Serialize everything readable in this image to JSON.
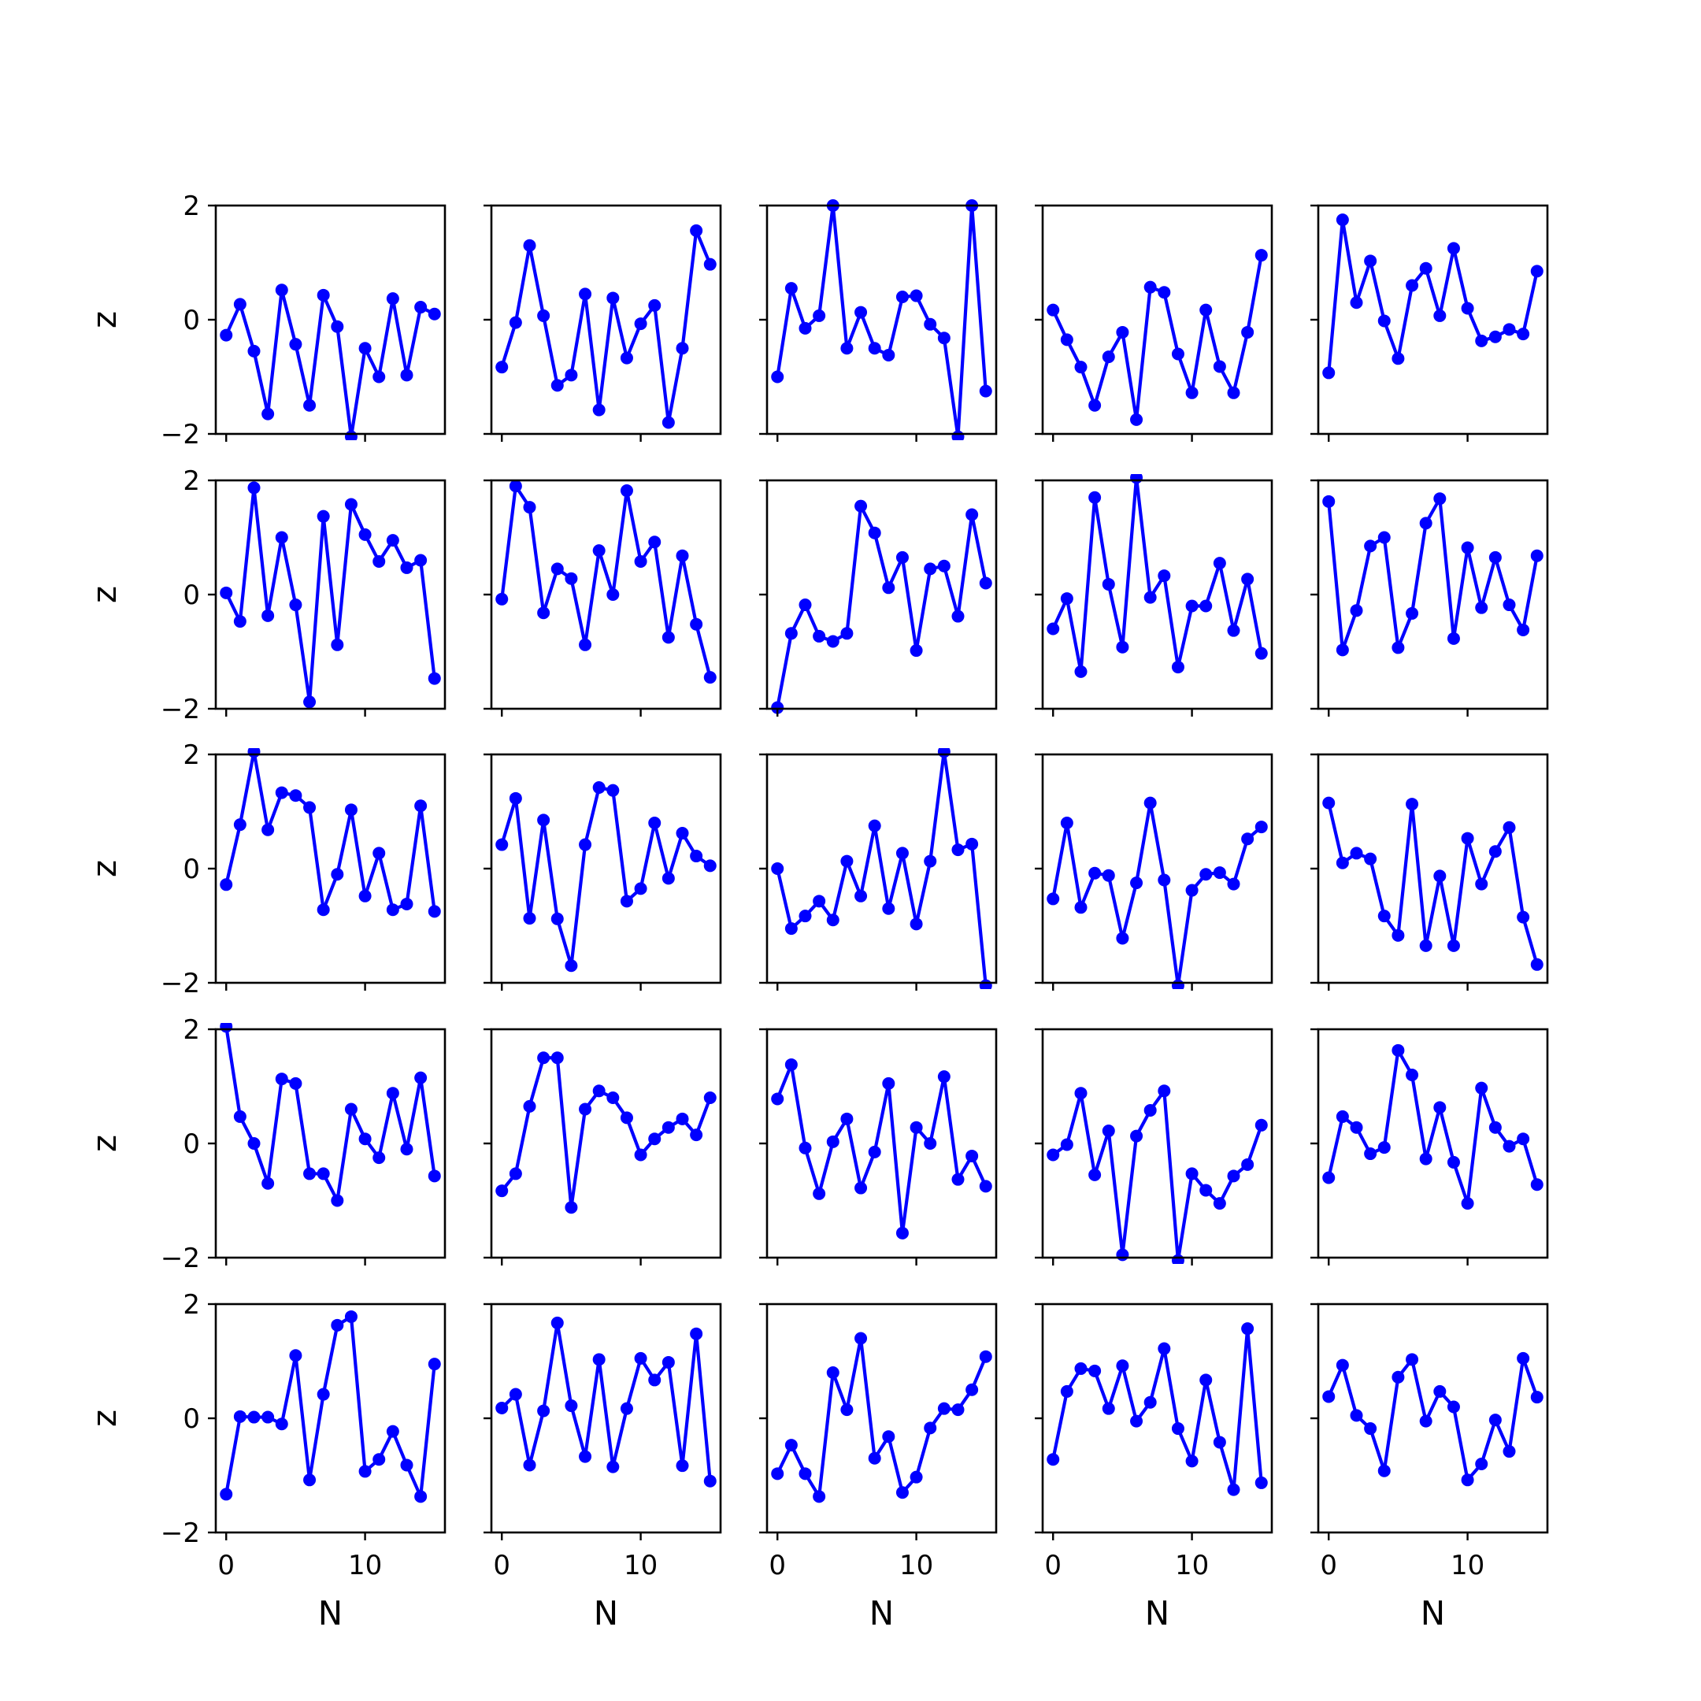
{
  "chart_data": {
    "type": "line",
    "layout": {
      "rows": 5,
      "cols": 5
    },
    "xlabel": "N",
    "ylabel": "z",
    "xlim": [
      -0.75,
      15.75
    ],
    "ylim": [
      -2,
      2
    ],
    "xticks": [
      0,
      10
    ],
    "yticks": [
      -2,
      0,
      2
    ],
    "x": [
      0,
      1,
      2,
      3,
      4,
      5,
      6,
      7,
      8,
      9,
      10,
      11,
      12,
      13,
      14,
      15
    ],
    "color": "#0000ff",
    "marker": "circle",
    "panels": [
      [
        -0.27,
        0.27,
        -0.55,
        -1.65,
        0.52,
        -0.43,
        -1.5,
        0.43,
        -0.12,
        -2.05,
        -0.5,
        -1.0,
        0.37,
        -0.97,
        0.22,
        0.1
      ],
      [
        -0.83,
        -0.05,
        1.3,
        0.07,
        -1.15,
        -0.97,
        0.45,
        -1.58,
        0.38,
        -0.67,
        -0.07,
        0.25,
        -1.8,
        -0.5,
        1.56,
        0.97
      ],
      [
        -1.0,
        0.55,
        -0.15,
        0.07,
        2.0,
        -0.5,
        0.13,
        -0.5,
        -0.62,
        0.4,
        0.42,
        -0.08,
        -0.32,
        -2.05,
        2.0,
        -1.25
      ],
      [
        0.17,
        -0.35,
        -0.83,
        -1.5,
        -0.65,
        -0.22,
        -1.75,
        0.57,
        0.48,
        -0.6,
        -1.28,
        0.17,
        -0.82,
        -1.28,
        -0.22,
        1.13
      ],
      [
        -0.93,
        1.75,
        0.3,
        1.03,
        -0.02,
        -0.68,
        0.6,
        0.9,
        0.07,
        1.25,
        0.2,
        -0.37,
        -0.3,
        -0.17,
        -0.25,
        0.85
      ],
      [
        0.03,
        -0.47,
        1.87,
        -0.37,
        1.0,
        -0.18,
        -1.88,
        1.37,
        -0.88,
        1.58,
        1.05,
        0.58,
        0.95,
        0.47,
        0.6,
        -1.47
      ],
      [
        -0.08,
        1.9,
        1.53,
        -0.32,
        0.45,
        0.28,
        -0.88,
        0.77,
        0.0,
        1.82,
        0.58,
        0.92,
        -0.75,
        0.68,
        -0.52,
        -1.45
      ],
      [
        -1.98,
        -0.68,
        -0.18,
        -0.73,
        -0.82,
        -0.68,
        1.55,
        1.08,
        0.12,
        0.65,
        -0.98,
        0.45,
        0.5,
        -0.38,
        1.4,
        0.2
      ],
      [
        -0.6,
        -0.07,
        -1.35,
        1.7,
        0.18,
        -0.92,
        2.05,
        -0.05,
        0.33,
        -1.27,
        -0.2,
        -0.2,
        0.55,
        -0.63,
        0.27,
        -1.03
      ],
      [
        1.63,
        -0.97,
        -0.28,
        0.85,
        1.0,
        -0.93,
        -0.33,
        1.25,
        1.68,
        -0.77,
        0.82,
        -0.23,
        0.65,
        -0.18,
        -0.62,
        0.68
      ],
      [
        -0.28,
        0.77,
        2.05,
        0.68,
        1.33,
        1.28,
        1.07,
        -0.72,
        -0.1,
        1.03,
        -0.48,
        0.27,
        -0.72,
        -0.62,
        1.1,
        -0.75
      ],
      [
        0.42,
        1.23,
        -0.87,
        0.85,
        -0.88,
        -1.7,
        0.42,
        1.42,
        1.37,
        -0.57,
        -0.35,
        0.8,
        -0.17,
        0.62,
        0.22,
        0.05
      ],
      [
        0.0,
        -1.05,
        -0.83,
        -0.57,
        -0.9,
        0.13,
        -0.48,
        0.75,
        -0.7,
        0.27,
        -0.97,
        0.13,
        2.05,
        0.33,
        0.43,
        -2.05
      ],
      [
        -0.53,
        0.8,
        -0.68,
        -0.08,
        -0.12,
        -1.22,
        -0.25,
        1.15,
        -0.2,
        -2.05,
        -0.38,
        -0.1,
        -0.07,
        -0.27,
        0.52,
        0.73
      ],
      [
        1.15,
        0.1,
        0.27,
        0.17,
        -0.83,
        -1.17,
        1.13,
        -1.35,
        -0.13,
        -1.35,
        0.53,
        -0.27,
        0.3,
        0.72,
        -0.85,
        -1.68
      ],
      [
        2.05,
        0.47,
        0.0,
        -0.7,
        1.13,
        1.05,
        -0.53,
        -0.53,
        -1.0,
        0.6,
        0.08,
        -0.25,
        0.88,
        -0.1,
        1.15,
        -0.57
      ],
      [
        -0.83,
        -0.53,
        0.65,
        1.5,
        1.5,
        -1.12,
        0.6,
        0.92,
        0.8,
        0.45,
        -0.2,
        0.08,
        0.28,
        0.43,
        0.15,
        0.8
      ],
      [
        0.78,
        1.38,
        -0.08,
        -0.88,
        0.03,
        0.43,
        -0.78,
        -0.15,
        1.05,
        -1.57,
        0.28,
        0.0,
        1.17,
        -0.63,
        -0.22,
        -0.75
      ],
      [
        -0.2,
        -0.02,
        0.88,
        -0.55,
        0.22,
        -1.95,
        0.13,
        0.58,
        0.92,
        -2.05,
        -0.53,
        -0.82,
        -1.05,
        -0.57,
        -0.37,
        0.32
      ],
      [
        -0.6,
        0.47,
        0.28,
        -0.18,
        -0.07,
        1.63,
        1.2,
        -0.27,
        0.63,
        -0.33,
        -1.05,
        0.97,
        0.28,
        -0.05,
        0.08,
        -0.72
      ],
      [
        -1.33,
        0.03,
        0.02,
        0.02,
        -0.1,
        1.1,
        -1.08,
        0.42,
        1.63,
        1.78,
        -0.93,
        -0.72,
        -0.23,
        -0.82,
        -1.37,
        0.95
      ],
      [
        0.18,
        0.42,
        -0.82,
        0.13,
        1.67,
        0.22,
        -0.67,
        1.03,
        -0.85,
        0.17,
        1.05,
        0.67,
        0.98,
        -0.83,
        1.48,
        -1.1
      ],
      [
        -0.97,
        -0.47,
        -0.97,
        -1.37,
        0.8,
        0.15,
        1.4,
        -0.7,
        -0.32,
        -1.3,
        -1.03,
        -0.17,
        0.17,
        0.15,
        0.5,
        1.08
      ],
      [
        -0.72,
        0.47,
        0.87,
        0.83,
        0.17,
        0.92,
        -0.05,
        0.28,
        1.22,
        -0.18,
        -0.75,
        0.67,
        -0.42,
        -1.25,
        1.57,
        -1.13
      ],
      [
        0.38,
        0.93,
        0.05,
        -0.18,
        -0.92,
        0.72,
        1.03,
        -0.05,
        0.47,
        0.2,
        -1.08,
        -0.8,
        -0.03,
        -0.58,
        1.05,
        0.37
      ]
    ]
  }
}
